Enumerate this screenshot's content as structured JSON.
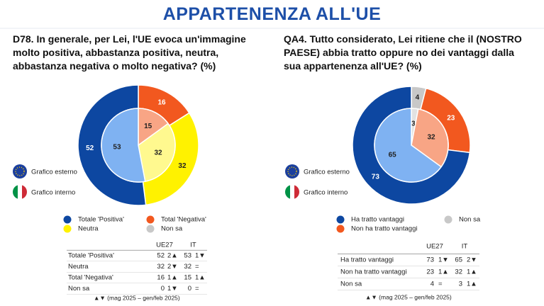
{
  "title": "APPARTENENZA ALL'UE",
  "chart_data": [
    {
      "type": "donut",
      "title": "D78. In generale, per Lei, l'UE evoca un'immagine molto positiva, abbastanza positiva, neutra, abbastanza negativa o molto negativa? (%)",
      "categories": [
        "Non sa",
        "Total 'Negativa'",
        "Neutra",
        "Totale 'Positiva'"
      ],
      "series": [
        {
          "name": "Grafico esterno",
          "colors": [
            "#c8c8c8",
            "#f2581f",
            "#fff200",
            "#0d47a1"
          ],
          "values": [
            0,
            16,
            32,
            52
          ]
        },
        {
          "name": "Grafico interno",
          "colors": [
            "#e2e2e2",
            "#f8a585",
            "#fff98f",
            "#7fb2f2"
          ],
          "values": [
            0,
            15,
            32,
            53
          ]
        }
      ]
    },
    {
      "type": "donut",
      "title": "QA4. Tutto considerato, Lei ritiene che il (NOSTRO PAESE) abbia tratto oppure no dei vantaggi dalla sua appartenenza all'UE? (%)",
      "categories": [
        "Non sa",
        "Non ha tratto vantaggi",
        "Ha tratto vantaggi"
      ],
      "series": [
        {
          "name": "Grafico esterno",
          "colors": [
            "#c8c8c8",
            "#f2581f",
            "#0d47a1"
          ],
          "values": [
            4,
            23,
            73
          ]
        },
        {
          "name": "Grafico interno",
          "colors": [
            "#e2e2e2",
            "#f8a585",
            "#7fb2f2"
          ],
          "values": [
            3,
            32,
            65
          ]
        }
      ]
    }
  ],
  "tables": [
    {
      "columns": [
        "UE27",
        "IT"
      ],
      "rows": [
        [
          "Totale 'Positiva'",
          52,
          "2▲",
          53,
          "1▼"
        ],
        [
          "Neutra",
          32,
          "2▼",
          32,
          "="
        ],
        [
          "Total 'Negativa'",
          16,
          "1▲",
          15,
          "1▲"
        ],
        [
          "Non sa",
          0,
          "1▼",
          0,
          "="
        ]
      ],
      "note": "▲▼ (mag 2025 – gen/feb 2025)"
    },
    {
      "columns": [
        "UE27",
        "IT"
      ],
      "rows": [
        [
          "Ha tratto vantaggi",
          73,
          "1▼",
          65,
          "2▼"
        ],
        [
          "Non ha tratto vantaggi",
          23,
          "1▲",
          32,
          "1▲"
        ],
        [
          "Non sa",
          4,
          "=",
          3,
          "1▲"
        ]
      ],
      "note": "▲▼ (mag 2025 – gen/feb 2025)"
    }
  ]
}
